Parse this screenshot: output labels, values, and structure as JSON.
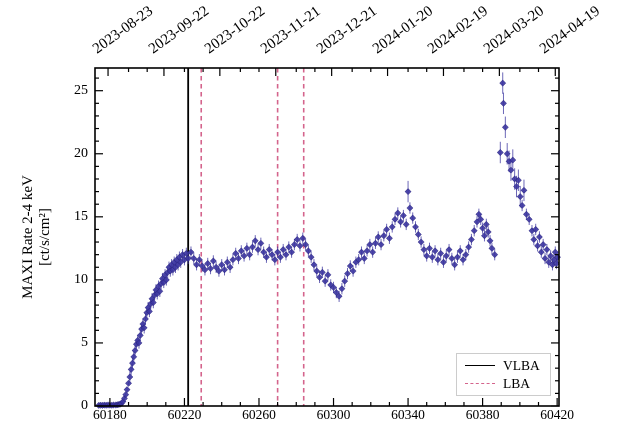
{
  "figure": {
    "y_axis_label_line1": "MAXI Rate 2-4 keV",
    "y_axis_label_line2": "[ct/s/cm²]"
  },
  "legend": {
    "entries": [
      {
        "label": "VLBA",
        "style": "solid",
        "color": "#000000"
      },
      {
        "label": "LBA",
        "style": "dashed",
        "color": "#d4648c"
      }
    ]
  },
  "chart_data": {
    "type": "scatter",
    "title": "",
    "xlabel": "",
    "ylabel": "MAXI Rate 2-4 keV [ct/s/cm²]",
    "xlim": [
      60172,
      60421
    ],
    "ylim": [
      0,
      26.8
    ],
    "grid": false,
    "legend_position": "lower right",
    "x_axis_bottom": {
      "unit": "MJD",
      "major_ticks": [
        60180,
        60220,
        60260,
        60300,
        60340,
        60380,
        60420
      ],
      "tick_labels": [
        "60180",
        "60220",
        "60260",
        "60300",
        "60340",
        "60380",
        "60420"
      ],
      "minor_tick_step_days": 10
    },
    "x_axis_top": {
      "unit": "date",
      "ticks": [
        {
          "mjd": 60179,
          "label": "2023-08-23"
        },
        {
          "mjd": 60209,
          "label": "2023-09-22"
        },
        {
          "mjd": 60239,
          "label": "2023-10-22"
        },
        {
          "mjd": 60269,
          "label": "2023-11-21"
        },
        {
          "mjd": 60299,
          "label": "2023-12-21"
        },
        {
          "mjd": 60329,
          "label": "2024-01-20"
        },
        {
          "mjd": 60359,
          "label": "2024-02-19"
        },
        {
          "mjd": 60389,
          "label": "2024-03-20"
        },
        {
          "mjd": 60419,
          "label": "2024-04-19"
        }
      ],
      "minor_tick_step_days": 10
    },
    "y_axis": {
      "major_ticks": [
        0,
        5,
        10,
        15,
        20,
        25
      ],
      "tick_labels": [
        "0",
        "5",
        "10",
        "15",
        "20",
        "25"
      ],
      "minor_tick_step": 1
    },
    "vlines": [
      {
        "group": "VLBA",
        "mjd": 60222,
        "style": "solid",
        "color": "#000000"
      },
      {
        "group": "LBA",
        "mjd": 60229,
        "style": "dashed",
        "color": "#d4648c"
      },
      {
        "group": "LBA",
        "mjd": 60270,
        "style": "dashed",
        "color": "#d4648c"
      },
      {
        "group": "LBA",
        "mjd": 60284,
        "style": "dashed",
        "color": "#d4648c"
      }
    ],
    "series": [
      {
        "name": "MAXI 2-4 keV rate",
        "marker": "diamond",
        "marker_color": "#3b35a0",
        "marker_edge_color": "#241f78",
        "error_bar_color": "#3b35a0",
        "error_bars": {
          "low_rate_below_2": 0.15,
          "normal": 0.45,
          "flare_above_16": 0.85
        },
        "points_format": "[mjd, rate_ct_s_cm2]",
        "points": [
          [
            60174.0,
            0.05
          ],
          [
            60175.0,
            0.06
          ],
          [
            60176.0,
            0.05
          ],
          [
            60177.0,
            0.07
          ],
          [
            60178.0,
            0.06
          ],
          [
            60179.0,
            0.08
          ],
          [
            60180.0,
            0.07
          ],
          [
            60181.0,
            0.06
          ],
          [
            60182.0,
            0.08
          ],
          [
            60183.2,
            0.08
          ],
          [
            60184.0,
            0.1
          ],
          [
            60184.8,
            0.12
          ],
          [
            60185.5,
            0.15
          ],
          [
            60186.2,
            0.2
          ],
          [
            60187.0,
            0.35
          ],
          [
            60187.8,
            0.6
          ],
          [
            60188.5,
            0.9
          ],
          [
            60189.2,
            1.3
          ],
          [
            60190.0,
            1.8
          ],
          [
            60190.7,
            2.3
          ],
          [
            60191.4,
            2.9
          ],
          [
            60192.1,
            3.4
          ],
          [
            60192.8,
            3.9
          ],
          [
            60193.5,
            4.4
          ],
          [
            60194.2,
            4.9
          ],
          [
            60194.9,
            5.2
          ],
          [
            60195.6,
            5.0
          ],
          [
            60196.3,
            5.6
          ],
          [
            60197.0,
            6.1
          ],
          [
            60197.7,
            6.5
          ],
          [
            60198.4,
            6.2
          ],
          [
            60199.1,
            6.9
          ],
          [
            60199.8,
            7.4
          ],
          [
            60200.5,
            7.8
          ],
          [
            60201.2,
            7.5
          ],
          [
            60201.9,
            8.1
          ],
          [
            60202.6,
            8.5
          ],
          [
            60203.3,
            8.2
          ],
          [
            60204.0,
            8.8
          ],
          [
            60204.7,
            9.2
          ],
          [
            60205.4,
            8.9
          ],
          [
            60206.1,
            9.5
          ],
          [
            60206.8,
            9.1
          ],
          [
            60207.5,
            9.7
          ],
          [
            60208.2,
            10.1
          ],
          [
            60208.9,
            9.8
          ],
          [
            60209.6,
            10.4
          ],
          [
            60210.3,
            10.0
          ],
          [
            60211.0,
            10.6
          ],
          [
            60211.7,
            11.0
          ],
          [
            60212.4,
            10.7
          ],
          [
            60213.1,
            11.2
          ],
          [
            60213.8,
            10.8
          ],
          [
            60214.5,
            11.4
          ],
          [
            60215.2,
            11.0
          ],
          [
            60215.9,
            11.6
          ],
          [
            60216.6,
            11.2
          ],
          [
            60217.3,
            11.8
          ],
          [
            60218.0,
            11.4
          ],
          [
            60219.0,
            12.0
          ],
          [
            60220.0,
            11.6
          ],
          [
            60221.0,
            12.1
          ],
          [
            60222.0,
            11.7
          ],
          [
            60223.5,
            12.2
          ],
          [
            60225.0,
            11.7
          ],
          [
            60226.5,
            11.2
          ],
          [
            60228.0,
            11.6
          ],
          [
            60229.5,
            11.1
          ],
          [
            60231.0,
            10.8
          ],
          [
            60232.5,
            11.3
          ],
          [
            60234.0,
            10.9
          ],
          [
            60235.5,
            11.5
          ],
          [
            60237.0,
            11.0
          ],
          [
            60238.5,
            10.7
          ],
          [
            60240.0,
            11.2
          ],
          [
            60241.5,
            10.8
          ],
          [
            60243.0,
            11.4
          ],
          [
            60244.5,
            11.0
          ],
          [
            60246.0,
            11.6
          ],
          [
            60247.5,
            12.1
          ],
          [
            60249.0,
            11.7
          ],
          [
            60250.5,
            12.3
          ],
          [
            60252.0,
            11.9
          ],
          [
            60253.5,
            12.5
          ],
          [
            60255.0,
            12.0
          ],
          [
            60256.5,
            12.6
          ],
          [
            60258.0,
            13.1
          ],
          [
            60259.5,
            12.4
          ],
          [
            60261.0,
            12.9
          ],
          [
            60262.5,
            12.2
          ],
          [
            60264.0,
            11.8
          ],
          [
            60265.5,
            12.4
          ],
          [
            60267.0,
            12.0
          ],
          [
            60268.5,
            11.6
          ],
          [
            60270.0,
            12.2
          ],
          [
            60271.5,
            11.8
          ],
          [
            60273.0,
            12.4
          ],
          [
            60274.5,
            12.0
          ],
          [
            60276.0,
            12.6
          ],
          [
            60277.5,
            12.2
          ],
          [
            60279.0,
            12.8
          ],
          [
            60280.5,
            13.2
          ],
          [
            60282.0,
            12.7
          ],
          [
            60283.5,
            13.3
          ],
          [
            60285.0,
            12.8
          ],
          [
            60286.5,
            12.3
          ],
          [
            60288.0,
            11.8
          ],
          [
            60289.5,
            11.2
          ],
          [
            60291.0,
            10.7
          ],
          [
            60292.5,
            10.2
          ],
          [
            60294.0,
            10.6
          ],
          [
            60295.5,
            9.9
          ],
          [
            60297.0,
            10.4
          ],
          [
            60298.5,
            9.6
          ],
          [
            60300.0,
            9.4
          ],
          [
            60301.5,
            9.0
          ],
          [
            60303.0,
            8.7
          ],
          [
            60304.5,
            9.3
          ],
          [
            60306.0,
            9.9
          ],
          [
            60307.5,
            10.5
          ],
          [
            60309.0,
            11.1
          ],
          [
            60310.5,
            10.7
          ],
          [
            60312.0,
            11.4
          ],
          [
            60313.5,
            11.6
          ],
          [
            60315.0,
            12.2
          ],
          [
            60316.5,
            11.7
          ],
          [
            60318.0,
            12.3
          ],
          [
            60319.5,
            12.8
          ],
          [
            60321.0,
            12.2
          ],
          [
            60322.5,
            12.9
          ],
          [
            60324.0,
            13.4
          ],
          [
            60325.5,
            12.8
          ],
          [
            60327.0,
            13.5
          ],
          [
            60328.5,
            14.0
          ],
          [
            60330.0,
            13.3
          ],
          [
            60331.5,
            14.2
          ],
          [
            60333.0,
            14.8
          ],
          [
            60334.5,
            15.3
          ],
          [
            60336.0,
            14.6
          ],
          [
            60337.5,
            15.1
          ],
          [
            60339.0,
            14.4
          ],
          [
            60340.0,
            17.0
          ],
          [
            60341.0,
            15.7
          ],
          [
            60342.5,
            14.9
          ],
          [
            60344.0,
            14.2
          ],
          [
            60345.5,
            13.6
          ],
          [
            60347.0,
            13.0
          ],
          [
            60348.5,
            12.4
          ],
          [
            60350.0,
            11.9
          ],
          [
            60351.5,
            12.5
          ],
          [
            60353.0,
            11.8
          ],
          [
            60354.5,
            12.3
          ],
          [
            60356.0,
            11.6
          ],
          [
            60357.5,
            12.1
          ],
          [
            60359.0,
            11.4
          ],
          [
            60360.5,
            11.9
          ],
          [
            60362.0,
            12.4
          ],
          [
            60363.5,
            11.7
          ],
          [
            60365.0,
            11.2
          ],
          [
            60366.5,
            11.8
          ],
          [
            60368.0,
            12.3
          ],
          [
            60369.5,
            11.6
          ],
          [
            60371.0,
            12.0
          ],
          [
            60372.5,
            12.6
          ],
          [
            60374.0,
            13.2
          ],
          [
            60375.5,
            13.9
          ],
          [
            60377.0,
            14.6
          ],
          [
            60378.0,
            15.2
          ],
          [
            60379.0,
            14.8
          ],
          [
            60380.0,
            14.1
          ],
          [
            60381.0,
            13.5
          ],
          [
            60382.0,
            14.4
          ],
          [
            60383.0,
            13.8
          ],
          [
            60384.0,
            13.1
          ],
          [
            60385.0,
            12.5
          ],
          [
            60386.5,
            12.0
          ],
          [
            60389.5,
            20.1
          ],
          [
            60390.8,
            25.6
          ],
          [
            60391.2,
            24.0
          ],
          [
            60392.2,
            22.1
          ],
          [
            60393.2,
            20.0
          ],
          [
            60394.2,
            19.4
          ],
          [
            60395.2,
            18.7
          ],
          [
            60396.2,
            19.5
          ],
          [
            60397.2,
            18.0
          ],
          [
            60398.2,
            17.4
          ],
          [
            60399.2,
            17.9
          ],
          [
            60400.2,
            16.6
          ],
          [
            60401.2,
            15.9
          ],
          [
            60402.2,
            17.1
          ],
          [
            60403.5,
            15.2
          ],
          [
            60405.0,
            14.8
          ],
          [
            60406.5,
            13.9
          ],
          [
            60407.5,
            13.2
          ],
          [
            60408.5,
            14.0
          ],
          [
            60409.5,
            12.7
          ],
          [
            60410.5,
            13.4
          ],
          [
            60411.5,
            12.2
          ],
          [
            60412.5,
            12.8
          ],
          [
            60413.5,
            11.7
          ],
          [
            60414.5,
            12.4
          ],
          [
            60415.5,
            11.4
          ],
          [
            60416.5,
            11.9
          ],
          [
            60417.5,
            11.2
          ],
          [
            60418.3,
            11.6
          ],
          [
            60419.0,
            12.2
          ],
          [
            60419.6,
            11.3
          ],
          [
            60420.2,
            11.8
          ]
        ]
      }
    ]
  }
}
